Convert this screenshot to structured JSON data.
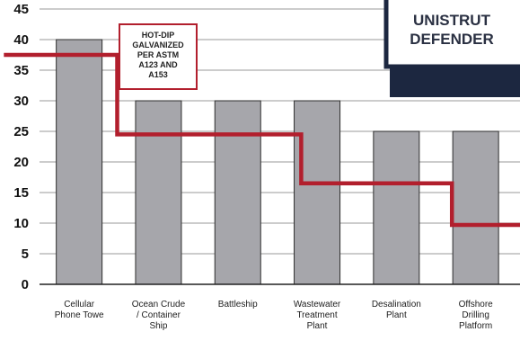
{
  "chart_data": {
    "type": "bar",
    "title": "",
    "xlabel": "",
    "ylabel": "",
    "ylim": [
      0,
      45
    ],
    "yticks": [
      0,
      5,
      10,
      15,
      20,
      25,
      30,
      35,
      40,
      45
    ],
    "grid": true,
    "categories": [
      [
        "Cellular",
        "Phone Towe"
      ],
      [
        "Ocean Crude",
        "/ Container",
        "Ship"
      ],
      [
        "Battleship"
      ],
      [
        "Wastewater",
        "Treatment",
        "Plant"
      ],
      [
        "Desalination",
        "Plant"
      ],
      [
        "Offshore",
        "Drilling",
        "Platform"
      ]
    ],
    "values": [
      40,
      30,
      30,
      30,
      25,
      25
    ],
    "bar_color": "#a6a6ab",
    "bar_edge_color": "#2e2e2e",
    "reference_line": {
      "color": "#b21f2d",
      "steps": [
        {
          "from_x": -0.95,
          "to_x": 0.48,
          "y": 37.5
        },
        {
          "from_x": 0.48,
          "to_x": 2.8,
          "y": 24.5
        },
        {
          "from_x": 2.8,
          "to_x": 4.7,
          "y": 16.5
        },
        {
          "from_x": 4.7,
          "to_x": 5.9,
          "y": 9.7
        }
      ]
    },
    "callout": {
      "lines": [
        "HOT-DIP",
        "GALVANIZED",
        "PER ASTM",
        "A123 AND",
        "A153"
      ],
      "border_color": "#b21f2d"
    },
    "legend": {
      "placement": "top-right",
      "lines": [
        "UNISTRUT",
        "DEFENDER"
      ],
      "border_color": "#1c2740"
    }
  }
}
